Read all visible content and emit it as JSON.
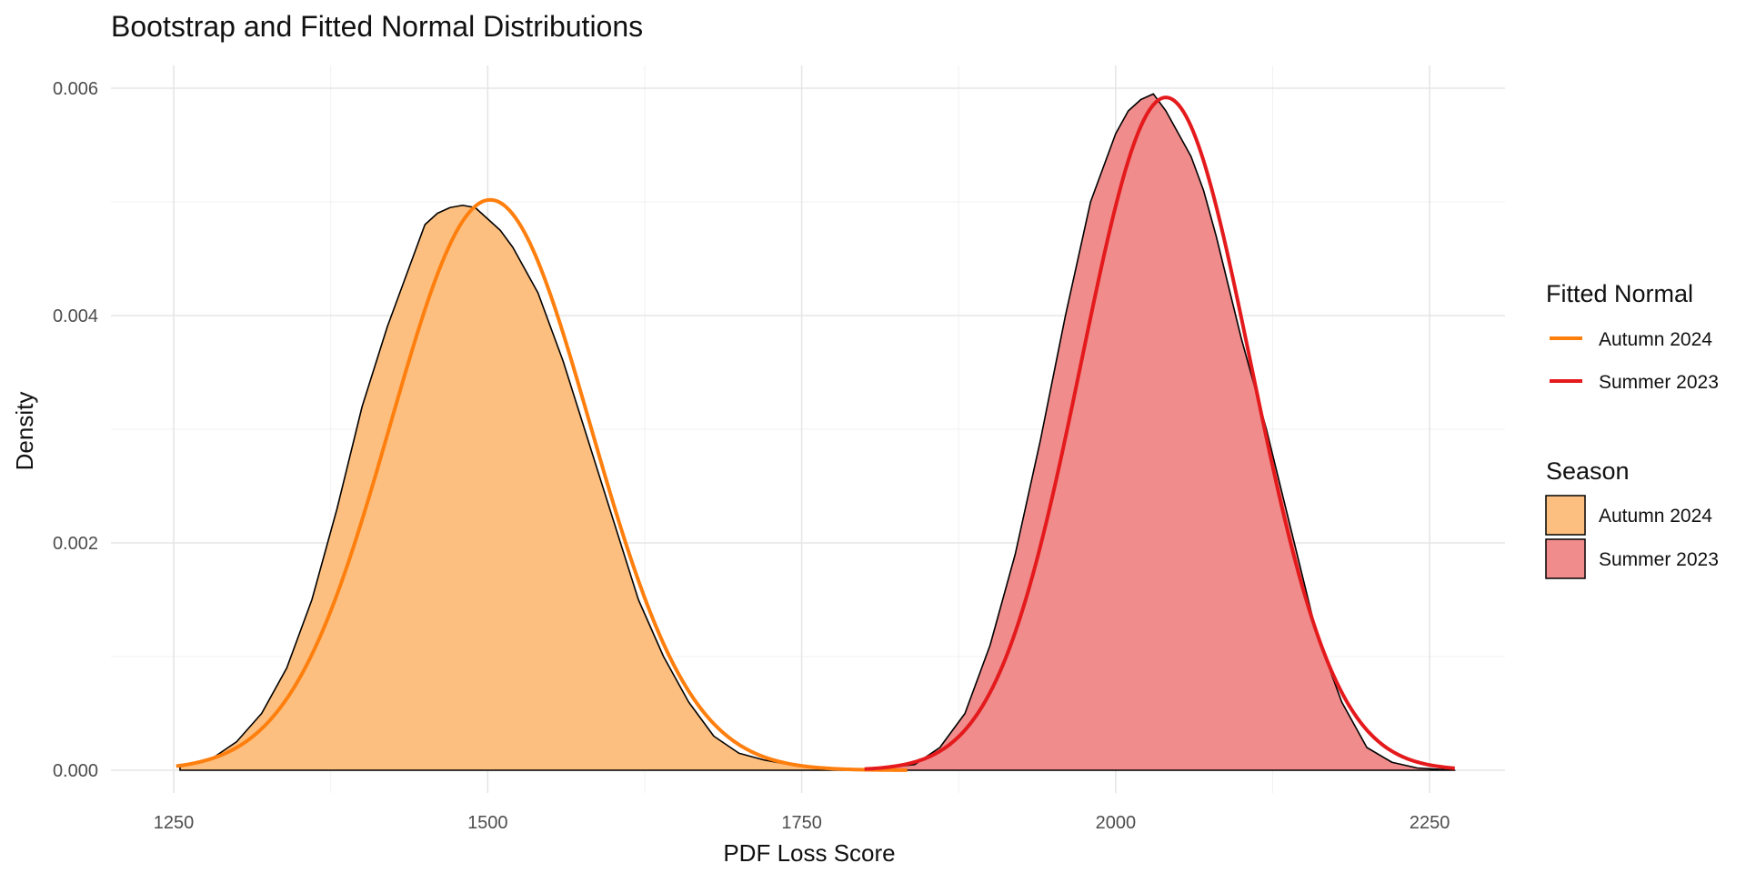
{
  "chart_data": {
    "type": "area",
    "title": "Bootstrap and Fitted Normal Distributions",
    "xlabel": "PDF Loss Score",
    "ylabel": "Density",
    "xlim": [
      1200,
      2310
    ],
    "ylim": [
      -0.0002,
      0.0062
    ],
    "x_ticks": [
      1250,
      1500,
      1750,
      2000,
      2250
    ],
    "x_tick_labels": [
      "1250",
      "1500",
      "1750",
      "2000",
      "2250"
    ],
    "y_ticks": [
      0.0,
      0.002,
      0.004,
      0.006
    ],
    "y_tick_labels": [
      "0.000",
      "0.002",
      "0.004",
      "0.006"
    ],
    "grid": true,
    "legend_placement": "right",
    "bootstrap_series": [
      {
        "name": "Autumn 2024",
        "fill": "#fdbf7f",
        "x": [
          1255,
          1280,
          1300,
          1320,
          1340,
          1360,
          1380,
          1400,
          1420,
          1440,
          1450,
          1460,
          1470,
          1480,
          1490,
          1500,
          1510,
          1520,
          1540,
          1560,
          1580,
          1600,
          1620,
          1640,
          1660,
          1680,
          1700,
          1720,
          1740,
          1760,
          1780,
          1800
        ],
        "y": [
          3e-05,
          0.0001,
          0.00025,
          0.0005,
          0.0009,
          0.0015,
          0.0023,
          0.0032,
          0.0039,
          0.0045,
          0.0048,
          0.0049,
          0.00495,
          0.00497,
          0.00495,
          0.00485,
          0.00475,
          0.0046,
          0.0042,
          0.0036,
          0.0029,
          0.0022,
          0.0015,
          0.001,
          0.0006,
          0.0003,
          0.00015,
          9e-05,
          5e-05,
          3e-05,
          1e-05,
          0.0
        ]
      },
      {
        "name": "Summer 2023",
        "fill": "#f08c8c",
        "x": [
          1800,
          1840,
          1860,
          1880,
          1900,
          1920,
          1940,
          1960,
          1980,
          2000,
          2010,
          2020,
          2030,
          2040,
          2050,
          2060,
          2070,
          2080,
          2100,
          2120,
          2140,
          2160,
          2180,
          2200,
          2220,
          2240,
          2270
        ],
        "y": [
          0.0,
          5e-05,
          0.0002,
          0.0005,
          0.0011,
          0.0019,
          0.0029,
          0.004,
          0.005,
          0.0056,
          0.0058,
          0.0059,
          0.00595,
          0.0058,
          0.0056,
          0.0054,
          0.0051,
          0.0047,
          0.0038,
          0.003,
          0.0021,
          0.0012,
          0.0006,
          0.0002,
          7e-05,
          2e-05,
          0.0
        ]
      }
    ],
    "fitted_series": [
      {
        "name": "Autumn 2024",
        "color": "#ff7f0e",
        "mean": 1502,
        "sd": 79.5,
        "range": [
          1252,
          1835
        ]
      },
      {
        "name": "Summer 2023",
        "color": "#e41a1c",
        "mean": 2040,
        "sd": 67.4,
        "range": [
          1800,
          2270
        ]
      }
    ],
    "legends": [
      {
        "title": "Fitted Normal",
        "kind": "line",
        "items": [
          {
            "label": "Autumn 2024",
            "color": "#ff7f0e"
          },
          {
            "label": "Summer 2023",
            "color": "#e41a1c"
          }
        ]
      },
      {
        "title": "Season",
        "kind": "fill",
        "items": [
          {
            "label": "Autumn 2024",
            "color": "#fdbf7f"
          },
          {
            "label": "Summer 2023",
            "color": "#f08c8c"
          }
        ]
      }
    ]
  }
}
